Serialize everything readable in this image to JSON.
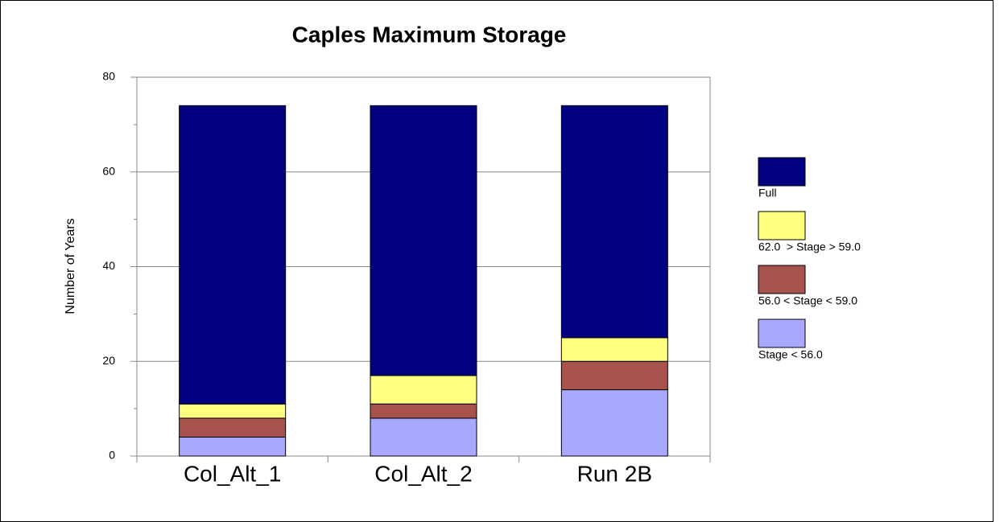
{
  "chart_data": {
    "type": "stacked_bar",
    "title": "Caples Maximum Storage",
    "y_label": "Number of Years",
    "categories": [
      "Col_Alt_1",
      "Col_Alt_2",
      "Run 2B"
    ],
    "series": [
      {
        "name": "Full",
        "color": "#000080",
        "values": [
          63,
          57,
          49
        ]
      },
      {
        "name": "62.0  > Stage > 59.0",
        "color": "#ffff80",
        "values": [
          3,
          6,
          5
        ]
      },
      {
        "name": "56.0 < Stage < 59.0",
        "color": "#a8524e",
        "values": [
          4,
          3,
          6
        ]
      },
      {
        "name": "Stage < 56.0",
        "color": "#a8a8ff",
        "values": [
          4,
          8,
          14
        ]
      }
    ],
    "ylim": [
      0,
      80
    ],
    "yticks": [
      0,
      20,
      40,
      60,
      80
    ],
    "yminorticks": [
      10,
      30,
      50,
      70
    ],
    "grid": true,
    "legend": "right"
  }
}
